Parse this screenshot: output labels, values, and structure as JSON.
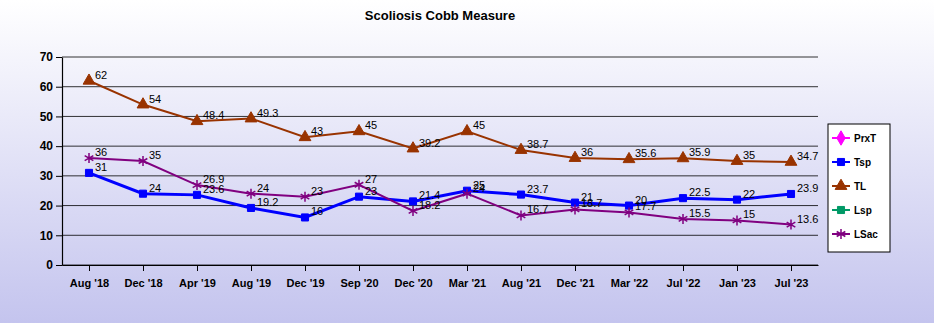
{
  "chart_data": {
    "type": "line",
    "title": "Scoliosis Cobb Measure",
    "categories": [
      "Aug '18",
      "Dec '18",
      "Apr '19",
      "Aug '19",
      "Dec '19",
      "Sep '20",
      "Dec '20",
      "Mar '21",
      "Aug '21",
      "Dec '21",
      "Mar '22",
      "Jul '22",
      "Jan '23",
      "Jul '23"
    ],
    "series": [
      {
        "name": "PrxT",
        "color": "#ff00ff",
        "marker": "diamond",
        "values": [
          null,
          null,
          null,
          null,
          null,
          null,
          null,
          null,
          null,
          null,
          null,
          null,
          null,
          null
        ]
      },
      {
        "name": "Tsp",
        "color": "#0000ff",
        "marker": "square",
        "values": [
          31,
          24,
          23.6,
          19.2,
          16,
          23,
          21.4,
          25,
          23.7,
          21,
          20,
          22.5,
          22,
          23.9
        ]
      },
      {
        "name": "TL",
        "color": "#993300",
        "marker": "triangle",
        "values": [
          62,
          54,
          48.4,
          49.3,
          43,
          45,
          39.2,
          45,
          38.7,
          36,
          35.6,
          35.9,
          35,
          34.7
        ]
      },
      {
        "name": "Lsp",
        "color": "#009966",
        "marker": "square",
        "values": [
          null,
          null,
          null,
          null,
          null,
          null,
          null,
          null,
          null,
          null,
          null,
          null,
          null,
          null
        ]
      },
      {
        "name": "LSac",
        "color": "#800080",
        "marker": "star",
        "values": [
          36,
          35,
          26.9,
          24,
          23,
          27,
          18.2,
          24,
          16.7,
          18.7,
          17.7,
          15.5,
          15,
          13.6
        ]
      }
    ],
    "ylim": [
      0,
      70
    ],
    "yticks": [
      0,
      10,
      20,
      30,
      40,
      50,
      60,
      70
    ],
    "grid": true,
    "data_labels": true,
    "legend": "right"
  }
}
